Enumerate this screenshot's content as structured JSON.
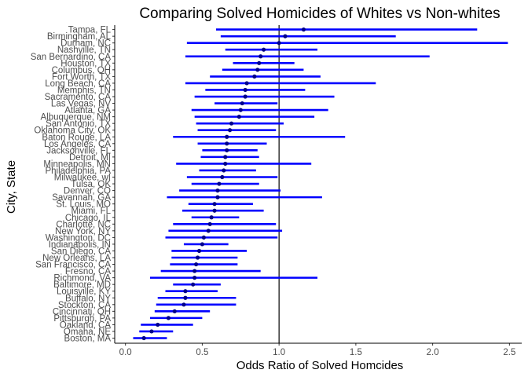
{
  "chart_data": {
    "type": "scatter",
    "title": "Comparing Solved Homicides of Whites vs Non-whites",
    "xlabel": "Odds Ratio of Solved Homcides",
    "ylabel": "City, State",
    "xlim": [
      -0.07,
      2.58
    ],
    "xticks": [
      "0.0",
      "0.5",
      "1.0",
      "1.5",
      "2.0",
      "2.5"
    ],
    "reference_line": 1.0,
    "colors": {
      "interval": "#0000ff",
      "point": "#00008b",
      "reference": "#000000"
    },
    "grid": false,
    "rows": [
      {
        "city": "Tampa, FL",
        "or": 1.16,
        "low": 0.59,
        "high": 2.29
      },
      {
        "city": "Birmingham, AL",
        "or": 1.04,
        "low": 0.62,
        "high": 1.76
      },
      {
        "city": "Durham, NC",
        "or": 1.0,
        "low": 0.4,
        "high": 2.49
      },
      {
        "city": "Nashville, TN",
        "or": 0.9,
        "low": 0.65,
        "high": 1.25
      },
      {
        "city": "San Bernardino, CA",
        "or": 0.88,
        "low": 0.39,
        "high": 1.98
      },
      {
        "city": "Houston, TX",
        "or": 0.87,
        "low": 0.7,
        "high": 1.1
      },
      {
        "city": "Columbus, OH",
        "or": 0.86,
        "low": 0.63,
        "high": 1.16
      },
      {
        "city": "Fort Worth, TX",
        "or": 0.84,
        "low": 0.55,
        "high": 1.27
      },
      {
        "city": "Long Beach, CA",
        "or": 0.79,
        "low": 0.39,
        "high": 1.63
      },
      {
        "city": "Memphis, TN",
        "or": 0.78,
        "low": 0.52,
        "high": 1.17
      },
      {
        "city": "Sacramento, CA",
        "or": 0.78,
        "low": 0.45,
        "high": 1.36
      },
      {
        "city": "Las Vegas, NV",
        "or": 0.76,
        "low": 0.58,
        "high": 0.99
      },
      {
        "city": "Atlanta, GA",
        "or": 0.75,
        "low": 0.43,
        "high": 1.32
      },
      {
        "city": "Albuquerque, NM",
        "or": 0.74,
        "low": 0.45,
        "high": 1.23
      },
      {
        "city": "San Antonio, TX",
        "or": 0.69,
        "low": 0.46,
        "high": 1.03
      },
      {
        "city": "Oklahoma City, OK",
        "or": 0.68,
        "low": 0.47,
        "high": 0.98
      },
      {
        "city": "Baton Rouge, LA",
        "or": 0.66,
        "low": 0.31,
        "high": 1.43
      },
      {
        "city": "Los Angeles, CA",
        "or": 0.66,
        "low": 0.47,
        "high": 0.92
      },
      {
        "city": "Jacksonville, FL",
        "or": 0.66,
        "low": 0.5,
        "high": 0.86
      },
      {
        "city": "Detroit, MI",
        "or": 0.65,
        "low": 0.49,
        "high": 0.87
      },
      {
        "city": "Minneapolis, MN",
        "or": 0.65,
        "low": 0.33,
        "high": 1.21
      },
      {
        "city": "Philadelphia, PA",
        "or": 0.64,
        "low": 0.48,
        "high": 0.85
      },
      {
        "city": "Milwaukee, wI",
        "or": 0.63,
        "low": 0.4,
        "high": 0.99
      },
      {
        "city": "Tulsa, OK",
        "or": 0.61,
        "low": 0.43,
        "high": 0.87
      },
      {
        "city": "Denver, CO",
        "or": 0.6,
        "low": 0.35,
        "high": 1.01
      },
      {
        "city": "Savannah, GA",
        "or": 0.6,
        "low": 0.27,
        "high": 1.28
      },
      {
        "city": "St. Louis, MO",
        "or": 0.58,
        "low": 0.41,
        "high": 0.83
      },
      {
        "city": "Miami, FL",
        "or": 0.58,
        "low": 0.37,
        "high": 0.9
      },
      {
        "city": "Chicago, IL",
        "or": 0.56,
        "low": 0.43,
        "high": 0.74
      },
      {
        "city": "Charlotte, NC",
        "or": 0.55,
        "low": 0.31,
        "high": 0.98
      },
      {
        "city": "New York, NY",
        "or": 0.54,
        "low": 0.28,
        "high": 1.02
      },
      {
        "city": "Washington, DC",
        "or": 0.51,
        "low": 0.26,
        "high": 0.99
      },
      {
        "city": "Indianapolis, IN",
        "or": 0.5,
        "low": 0.38,
        "high": 0.67
      },
      {
        "city": "San Diego, CA",
        "or": 0.48,
        "low": 0.3,
        "high": 0.79
      },
      {
        "city": "New Orleans, LA",
        "or": 0.47,
        "low": 0.3,
        "high": 0.73
      },
      {
        "city": "San Francisco, CA",
        "or": 0.46,
        "low": 0.29,
        "high": 0.73
      },
      {
        "city": "Fresno, CA",
        "or": 0.45,
        "low": 0.23,
        "high": 0.88
      },
      {
        "city": "Richmond, VA",
        "or": 0.45,
        "low": 0.16,
        "high": 1.25
      },
      {
        "city": "Baltimore, MD",
        "or": 0.44,
        "low": 0.31,
        "high": 0.62
      },
      {
        "city": "Louisville, KY",
        "or": 0.39,
        "low": 0.26,
        "high": 0.6
      },
      {
        "city": "Buffalo, NY",
        "or": 0.39,
        "low": 0.21,
        "high": 0.72
      },
      {
        "city": "Stockton, CA",
        "or": 0.38,
        "low": 0.2,
        "high": 0.72
      },
      {
        "city": "Cincinnati, OH",
        "or": 0.32,
        "low": 0.19,
        "high": 0.55
      },
      {
        "city": "Pittsburgh, PA",
        "or": 0.28,
        "low": 0.16,
        "high": 0.5
      },
      {
        "city": "Oakland, CA",
        "or": 0.21,
        "low": 0.1,
        "high": 0.44
      },
      {
        "city": "Omaha, NE",
        "or": 0.17,
        "low": 0.09,
        "high": 0.31
      },
      {
        "city": "Boston, MA",
        "or": 0.12,
        "low": 0.05,
        "high": 0.27
      }
    ]
  }
}
